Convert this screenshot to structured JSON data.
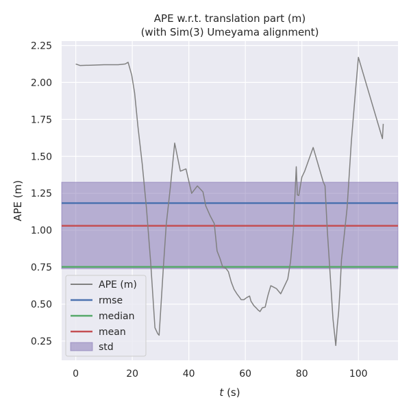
{
  "chart_data": {
    "type": "line",
    "title_lines": [
      "APE w.r.t. translation part (m)",
      "(with Sim(3) Umeyama alignment)"
    ],
    "xlabel_var": "t",
    "xlabel_unit": " (s)",
    "ylabel": "APE (m)",
    "xlim": [
      -5,
      114
    ],
    "ylim": [
      0.12,
      2.28
    ],
    "xticks": [
      0,
      20,
      40,
      60,
      80,
      100
    ],
    "yticks": [
      0.25,
      0.5,
      0.75,
      1.0,
      1.25,
      1.5,
      1.75,
      2.0,
      2.25
    ],
    "ytick_labels": [
      "0.25",
      "0.50",
      "0.75",
      "1.00",
      "1.25",
      "1.50",
      "1.75",
      "2.00",
      "2.25"
    ],
    "grid": true,
    "legend_position": "lower-left",
    "series": [
      {
        "name": "APE (m)",
        "color": "#808080",
        "x": [
          0,
          1.5,
          5,
          10,
          15,
          17.5,
          18.5,
          19.8,
          20.8,
          22,
          23.5,
          25,
          26.5,
          28,
          29,
          29.5,
          31,
          32,
          33.5,
          35,
          37,
          39,
          41,
          43,
          45,
          46,
          47.5,
          49,
          50,
          51,
          52,
          53,
          54,
          55,
          56,
          57,
          58,
          58.5,
          59.5,
          60.5,
          61.5,
          62,
          63,
          63.8,
          64.5,
          65.2,
          66,
          67,
          68,
          69,
          70,
          71,
          72.5,
          74,
          75,
          76,
          77,
          78,
          78.4,
          78.9,
          80,
          81,
          84,
          87.5,
          88.2,
          89,
          90,
          91,
          92,
          92.5,
          93,
          93.5,
          94,
          95,
          96,
          97.5,
          99,
          100,
          108.5,
          108.8
        ],
        "y": [
          2.125,
          2.115,
          2.117,
          2.12,
          2.12,
          2.125,
          2.137,
          2.05,
          1.93,
          1.7,
          1.45,
          1.15,
          0.78,
          0.34,
          0.3,
          0.29,
          0.75,
          1.04,
          1.3,
          1.59,
          1.4,
          1.415,
          1.25,
          1.3,
          1.26,
          1.165,
          1.1,
          1.045,
          0.86,
          0.81,
          0.75,
          0.745,
          0.72,
          0.65,
          0.6,
          0.57,
          0.545,
          0.53,
          0.53,
          0.545,
          0.555,
          0.52,
          0.49,
          0.475,
          0.46,
          0.45,
          0.475,
          0.48,
          0.56,
          0.625,
          0.615,
          0.605,
          0.57,
          0.63,
          0.67,
          0.79,
          1.0,
          1.43,
          1.24,
          1.235,
          1.36,
          1.4,
          1.56,
          1.33,
          1.3,
          1.0,
          0.7,
          0.4,
          0.22,
          0.35,
          0.45,
          0.6,
          0.8,
          0.97,
          1.15,
          1.6,
          1.95,
          2.17,
          1.62,
          1.72
        ]
      }
    ],
    "stats": [
      {
        "name": "rmse",
        "value": 1.184,
        "color": "#4c72b0"
      },
      {
        "name": "median",
        "value": 0.752,
        "color": "#55a868"
      },
      {
        "name": "mean",
        "value": 1.03,
        "color": "#c44e52"
      }
    ],
    "std_band": {
      "name": "std",
      "low": 0.74,
      "high": 1.325,
      "color": "#8172b2"
    }
  }
}
